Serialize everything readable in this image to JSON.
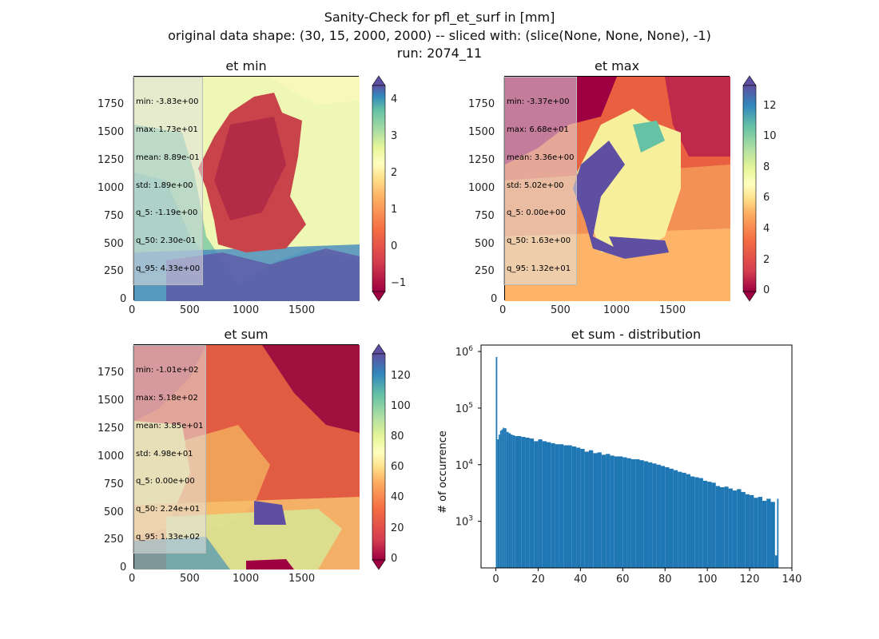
{
  "figure": {
    "title_line1": "Sanity-Check for pfl_et_surf in [mm]",
    "title_line2": "original data shape: (30, 15, 2000, 2000) -- sliced with: (slice(None, None, None), -1)",
    "title_line3": "run: 2074_11"
  },
  "colormap": "Spectral",
  "map_axes": {
    "x_ticks": [
      "0",
      "500",
      "1000",
      "1500"
    ],
    "y_ticks": [
      "0",
      "250",
      "500",
      "750",
      "1000",
      "1250",
      "1500",
      "1750"
    ]
  },
  "panels": {
    "et_min": {
      "title": "et min",
      "stats": [
        "min: -3.83e+00",
        "max: 1.73e+01",
        "mean: 8.89e-01",
        "std: 1.89e+00",
        "q_5: -1.19e+00",
        "q_50: 2.30e-01",
        "q_95: 4.33e+00"
      ],
      "colorbar_ticks": [
        "−1",
        "0",
        "1",
        "2",
        "3",
        "4"
      ]
    },
    "et_max": {
      "title": "et max",
      "stats": [
        "min: -3.37e+00",
        "max: 6.68e+01",
        "mean: 3.36e+00",
        "std: 5.02e+00",
        "q_5: 0.00e+00",
        "q_50: 1.63e+00",
        "q_95: 1.32e+01"
      ],
      "colorbar_ticks": [
        "0",
        "2",
        "4",
        "6",
        "8",
        "10",
        "12"
      ]
    },
    "et_sum": {
      "title": "et sum",
      "stats": [
        "min: -1.01e+02",
        "max: 5.18e+02",
        "mean: 3.85e+01",
        "std: 4.98e+01",
        "q_5: 0.00e+00",
        "q_50: 2.24e+01",
        "q_95: 1.33e+02"
      ],
      "colorbar_ticks": [
        "0",
        "20",
        "40",
        "60",
        "80",
        "100",
        "120"
      ]
    }
  },
  "chart_data": {
    "type": "bar",
    "title": "et sum - distribution",
    "xlabel": "",
    "ylabel": "# of occurrence",
    "yscale": "log",
    "xlim": [
      -7,
      140
    ],
    "ylim": [
      150,
      1300000
    ],
    "x_ticks": [
      "0",
      "20",
      "40",
      "60",
      "80",
      "100",
      "120",
      "140"
    ],
    "y_ticks": [
      {
        "base": "10",
        "exp": "3",
        "value": 1000
      },
      {
        "base": "10",
        "exp": "4",
        "value": 10000
      },
      {
        "base": "10",
        "exp": "5",
        "value": 100000
      },
      {
        "base": "10",
        "exp": "6",
        "value": 1000000
      }
    ],
    "color": "#1f77b4",
    "bin_width": 0.67,
    "bins_x": [
      0,
      0.67,
      1.33,
      2,
      2.67,
      3.33,
      4,
      5,
      6,
      7,
      8,
      9,
      10,
      12,
      14,
      16,
      18,
      20,
      22,
      24,
      26,
      28,
      30,
      32,
      34,
      36,
      38,
      40,
      42,
      44,
      46,
      48,
      50,
      52,
      54,
      56,
      58,
      60,
      62,
      64,
      66,
      68,
      70,
      72,
      74,
      76,
      78,
      80,
      82,
      84,
      86,
      88,
      90,
      92,
      94,
      96,
      98,
      100,
      102,
      104,
      106,
      108,
      110,
      112,
      114,
      116,
      118,
      120,
      122,
      124,
      126,
      128,
      130,
      132,
      133
    ],
    "values": [
      800000,
      28000,
      34000,
      40000,
      42000,
      45000,
      44000,
      38000,
      36000,
      34000,
      33000,
      32000,
      32000,
      31000,
      30000,
      29000,
      26000,
      28000,
      26000,
      25000,
      24000,
      23000,
      23000,
      22000,
      22000,
      21000,
      20000,
      19000,
      17000,
      18000,
      16000,
      16500,
      15000,
      15500,
      14500,
      14000,
      14000,
      13500,
      13000,
      12500,
      12500,
      12000,
      11500,
      11000,
      10500,
      10000,
      9500,
      9000,
      8500,
      8000,
      7500,
      7200,
      6800,
      6200,
      6000,
      5800,
      5200,
      5000,
      4800,
      4200,
      4000,
      4100,
      3800,
      3500,
      3700,
      3300,
      3000,
      2900,
      2600,
      2700,
      2300,
      2500,
      2200,
      250,
      2500
    ]
  }
}
